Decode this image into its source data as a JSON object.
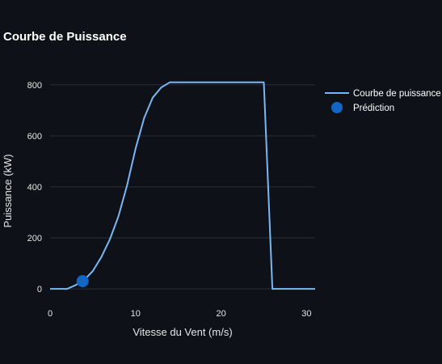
{
  "colors": {
    "background": "#0e1117",
    "grid": "#2b2f38",
    "curve": "#7ab8f5",
    "marker": "#1266c4"
  },
  "chart_data": {
    "type": "line",
    "title": "Courbe de Puissance",
    "xlabel": "Vitesse du Vent (m/s)",
    "ylabel": "Puissance (kW)",
    "xlim": [
      0,
      31
    ],
    "ylim": [
      -60,
      860
    ],
    "xticks": [
      0,
      10,
      20,
      30
    ],
    "yticks": [
      0,
      200,
      400,
      600,
      800
    ],
    "grid": true,
    "legend_position": "top-right",
    "series": [
      {
        "name": "Courbe de puissance",
        "mode": "line",
        "x": [
          0,
          2,
          3,
          4,
          5,
          6,
          7,
          8,
          9,
          10,
          11,
          12,
          13,
          14,
          15,
          16,
          17,
          18,
          19,
          20,
          21,
          22,
          23,
          24,
          25,
          26,
          27,
          28,
          29,
          30,
          31
        ],
        "y": [
          0,
          0,
          15,
          35,
          70,
          125,
          195,
          285,
          405,
          550,
          670,
          750,
          790,
          810,
          810,
          810,
          810,
          810,
          810,
          810,
          810,
          810,
          810,
          810,
          810,
          0,
          0,
          0,
          0,
          0,
          0
        ]
      },
      {
        "name": "Prédiction",
        "mode": "markers",
        "x": [
          3.8
        ],
        "y": [
          30
        ]
      }
    ]
  }
}
